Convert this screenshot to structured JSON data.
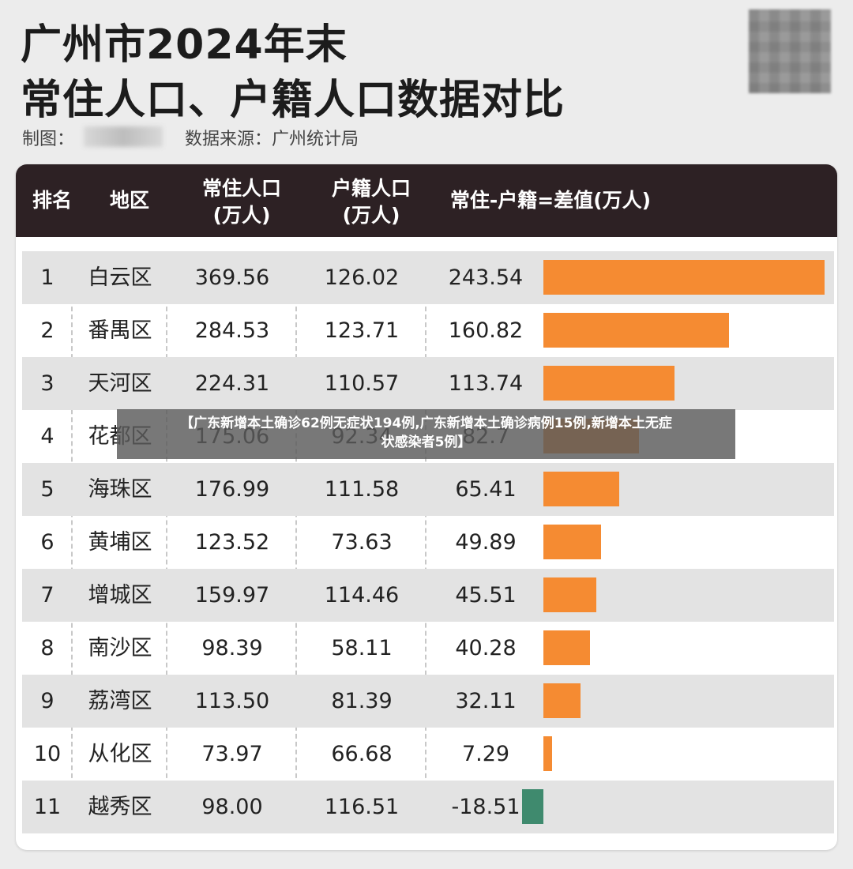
{
  "header": {
    "title_line1": "广州市2024年末",
    "title_line2": "常住人口、户籍人口数据对比",
    "credit_label": "制图：",
    "source": "数据来源：广州统计局"
  },
  "table": {
    "columns": [
      "排名",
      "地区",
      "常住人口\n(万人)",
      "户籍人口\n(万人)",
      "常住-户籍=差值(万人)"
    ]
  },
  "colors": {
    "positive_bar": "#f58b32",
    "negative_bar": "#3f8a6e",
    "header_bg": "#2d2124"
  },
  "chart_data": {
    "type": "table",
    "title": "广州市2024年末 常住人口、户籍人口数据对比",
    "columns": [
      "排名",
      "地区",
      "常住人口(万人)",
      "户籍人口(万人)",
      "常住-户籍=差值(万人)"
    ],
    "rows": [
      {
        "rank": "1",
        "district": "白云区",
        "resident": "369.56",
        "registered": "126.02",
        "diff": "243.54"
      },
      {
        "rank": "2",
        "district": "番禺区",
        "resident": "284.53",
        "registered": "123.71",
        "diff": "160.82"
      },
      {
        "rank": "3",
        "district": "天河区",
        "resident": "224.31",
        "registered": "110.57",
        "diff": "113.74"
      },
      {
        "rank": "4",
        "district": "花都区",
        "resident": "175.06",
        "registered": "92.34",
        "diff": "82.7"
      },
      {
        "rank": "5",
        "district": "海珠区",
        "resident": "176.99",
        "registered": "111.58",
        "diff": "65.41"
      },
      {
        "rank": "6",
        "district": "黄埔区",
        "resident": "123.52",
        "registered": "73.63",
        "diff": "49.89"
      },
      {
        "rank": "7",
        "district": "增城区",
        "resident": "159.97",
        "registered": "114.46",
        "diff": "45.51"
      },
      {
        "rank": "8",
        "district": "南沙区",
        "resident": "98.39",
        "registered": "58.11",
        "diff": "40.28"
      },
      {
        "rank": "9",
        "district": "荔湾区",
        "resident": "113.50",
        "registered": "81.39",
        "diff": "32.11"
      },
      {
        "rank": "10",
        "district": "从化区",
        "resident": "73.97",
        "registered": "66.68",
        "diff": "7.29"
      },
      {
        "rank": "11",
        "district": "越秀区",
        "resident": "98.00",
        "registered": "116.51",
        "diff": "-18.51"
      }
    ]
  },
  "banner": {
    "line1": "【广东新增本土确诊62例无症状194例,广东新增本土确诊病例15例,新增本土无症",
    "line2": "状感染者5例】"
  }
}
